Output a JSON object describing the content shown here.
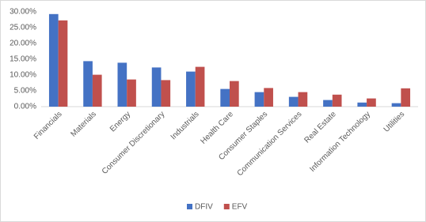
{
  "chart_data": {
    "type": "bar",
    "categories": [
      "Financials",
      "Materials",
      "Energy",
      "Consumer Discretionary",
      "Industrials",
      "Health Care",
      "Consumer Staples",
      "Communication Services",
      "Real Estate",
      "Information Technology",
      "Utilities"
    ],
    "series": [
      {
        "name": "DFIV",
        "color": "#4472c4",
        "values": [
          29.3,
          14.4,
          13.9,
          12.4,
          11.1,
          5.6,
          4.6,
          3.1,
          2.1,
          1.3,
          1.1
        ]
      },
      {
        "name": "EFV",
        "color": "#c0504d",
        "values": [
          27.3,
          10.1,
          8.6,
          8.4,
          12.6,
          8.1,
          5.9,
          4.6,
          3.8,
          2.6,
          5.8
        ]
      }
    ],
    "ylim": [
      0,
      30
    ],
    "yticks": [
      {
        "value": 0,
        "label": "0.00%"
      },
      {
        "value": 5,
        "label": "5.00%"
      },
      {
        "value": 10,
        "label": "10.00%"
      },
      {
        "value": 15,
        "label": "15.00%"
      },
      {
        "value": 20,
        "label": "20.00%"
      },
      {
        "value": 25,
        "label": "25.00%"
      },
      {
        "value": 30,
        "label": "30.00%"
      }
    ],
    "grid": false,
    "legend": "bottom"
  }
}
